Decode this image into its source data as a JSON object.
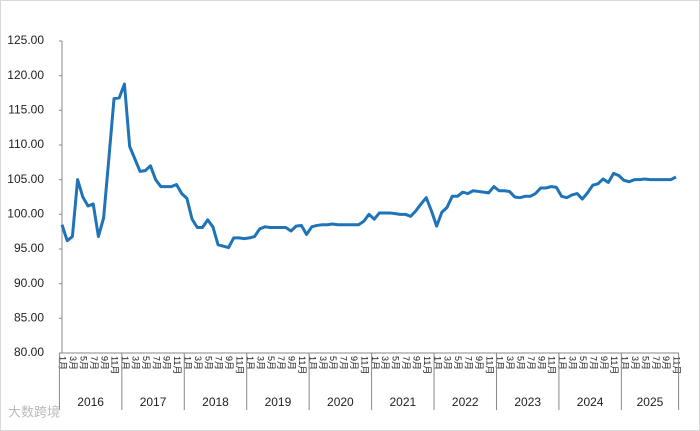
{
  "chart_data": {
    "type": "line",
    "categories": [
      "1月",
      null,
      "3月",
      null,
      "5月",
      null,
      "7月",
      null,
      "9月",
      null,
      "11月",
      null,
      "1月",
      null,
      "3月",
      null,
      "5月",
      null,
      "7月",
      null,
      "9月",
      null,
      "11月",
      null,
      "1月",
      null,
      "3月",
      null,
      "5月",
      null,
      "7月",
      null,
      "9月",
      null,
      "11月",
      null,
      "1月",
      null,
      "3月",
      null,
      "5月",
      null,
      "7月",
      null,
      "9月",
      null,
      "11月",
      null,
      "1月",
      null,
      "3月",
      null,
      "5月",
      null,
      "7月",
      null,
      "9月",
      null,
      "11月",
      null,
      "1月",
      null,
      "3月",
      null,
      "5月",
      null,
      "7月",
      null,
      "9月",
      null,
      "11月",
      null,
      "1月",
      null,
      "3月",
      null,
      "5月",
      null,
      "7月",
      null,
      "9月",
      null,
      "11月",
      null,
      "1月",
      null,
      "3月",
      null,
      "5月",
      null,
      "7月",
      null,
      "9月",
      null,
      "11月",
      null,
      "1月",
      null,
      "3月",
      null,
      "5月",
      null,
      "7月",
      null,
      "9月",
      null,
      "11月",
      null,
      "1月",
      null,
      "3月",
      null,
      "5月",
      null,
      "7月",
      null,
      "9月",
      null,
      "11月"
    ],
    "years": [
      "2016",
      "2017",
      "2018",
      "2019",
      "2020",
      "2021",
      "2022",
      "2023",
      "2024",
      "2025"
    ],
    "values": [
      98.5,
      96.2,
      96.8,
      105,
      102.5,
      101.2,
      101.5,
      96.8,
      99.5,
      108,
      116.7,
      116.8,
      118.8,
      109.8,
      108,
      106.2,
      106.3,
      107,
      105,
      104,
      104,
      104,
      104.3,
      103,
      102.3,
      99.3,
      98.1,
      98.1,
      99.2,
      98.2,
      95.6,
      95.4,
      95.2,
      96.6,
      96.6,
      96.5,
      96.6,
      96.8,
      97.9,
      98.2,
      98.1,
      98.1,
      98.1,
      98.1,
      97.6,
      98.3,
      98.4,
      97.1,
      98.2,
      98.4,
      98.5,
      98.5,
      98.6,
      98.5,
      98.5,
      98.5,
      98.5,
      98.5,
      99,
      100,
      99.3,
      100.2,
      100.2,
      100.2,
      100.1,
      100,
      100,
      99.7,
      100.5,
      101.5,
      102.4,
      100.5,
      98.3,
      100.3,
      101,
      102.6,
      102.6,
      103.2,
      103,
      103.4,
      103.3,
      103.2,
      103.1,
      104,
      103.4,
      103.4,
      103.3,
      102.5,
      102.4,
      102.6,
      102.6,
      103,
      103.8,
      103.8,
      104,
      103.9,
      102.6,
      102.4,
      102.8,
      103,
      102.2,
      103.1,
      104.2,
      104.4,
      105.1,
      104.6,
      105.9,
      105.6,
      104.9,
      104.7,
      105,
      105,
      105.1,
      105,
      105,
      105,
      105,
      105,
      105.4
    ],
    "color": "#1f73b7",
    "ylim": [
      80,
      125
    ],
    "yticks": [
      {
        "value": 80,
        "label": "80.00"
      },
      {
        "value": 85,
        "label": "85.00"
      },
      {
        "value": 90,
        "label": "90.00"
      },
      {
        "value": 95,
        "label": "95.00"
      },
      {
        "value": 100,
        "label": "100.00"
      },
      {
        "value": 105,
        "label": "105.00"
      },
      {
        "value": 110,
        "label": "110.00"
      },
      {
        "value": 115,
        "label": "115.00"
      },
      {
        "value": 120,
        "label": "120.00"
      },
      {
        "value": 125,
        "label": "125.00"
      }
    ],
    "grid": false,
    "watermark": "大数跨境"
  }
}
